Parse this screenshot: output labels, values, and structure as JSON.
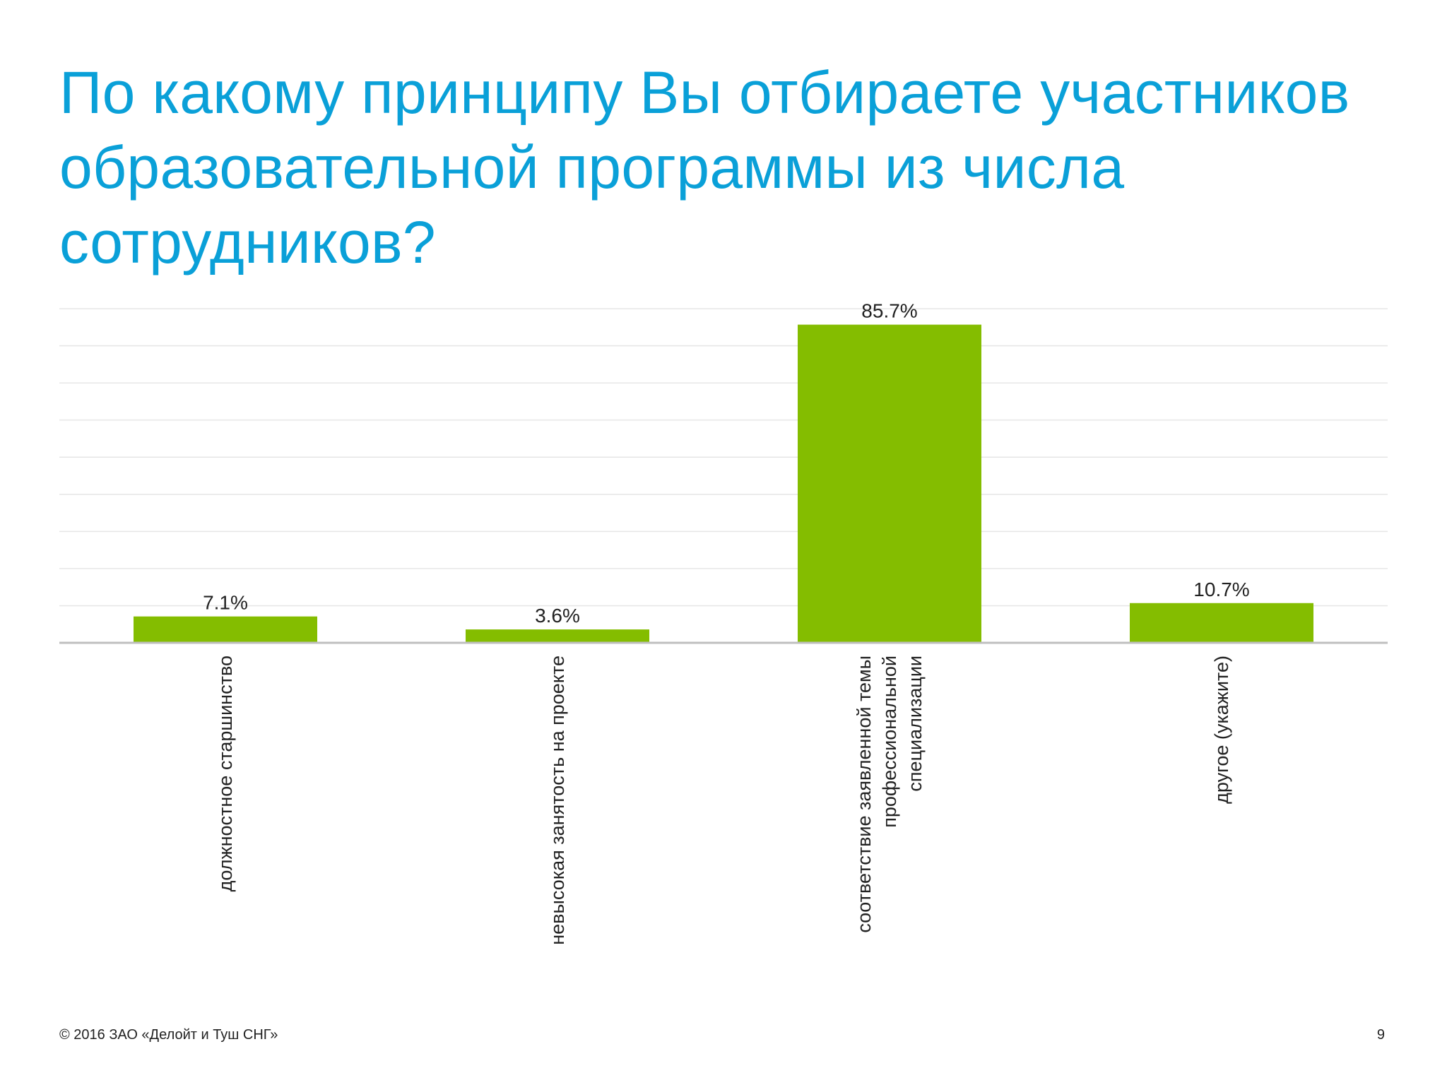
{
  "slide": {
    "title": "По какому принципу Вы отбираете участников образовательной программы из числа сотрудников?",
    "copyright": "© 2016 ЗАО «Делойт и Туш СНГ»",
    "page_number": "9"
  },
  "colors": {
    "title": "#0aa0d8",
    "bar": "#84bd00",
    "grid": "#e6e6e6",
    "axis": "#bfbfbf",
    "text": "#222222"
  },
  "chart_data": {
    "type": "bar",
    "title": "",
    "xlabel": "",
    "ylabel": "",
    "ylim": [
      0,
      90
    ],
    "grid": true,
    "categories": [
      [
        "должностное старшинство"
      ],
      [
        "невысокая занятость на проекте"
      ],
      [
        "соответствие заявленной темы",
        "профессиональной",
        "специализации"
      ],
      [
        "другое (укажите)"
      ]
    ],
    "values": [
      7.1,
      3.6,
      85.7,
      10.7
    ],
    "value_labels": [
      "7.1%",
      "3.6%",
      "85.7%",
      "10.7%"
    ]
  }
}
